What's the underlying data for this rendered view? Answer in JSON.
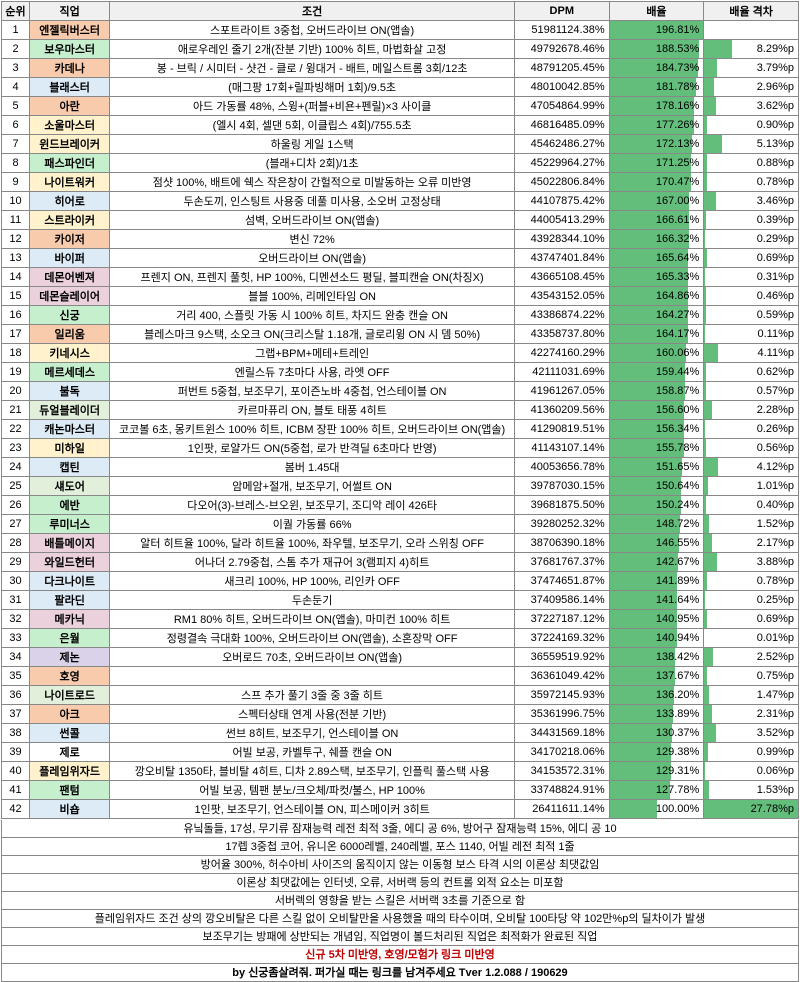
{
  "headers": {
    "rank": "순위",
    "job": "직업",
    "cond": "조건",
    "dpm": "DPM",
    "pct": "배율",
    "gap": "배율 격차"
  },
  "pctBar": {
    "color": "#63be7b",
    "max": 196.81
  },
  "gapBar": {
    "color": "#63be7b",
    "max": 27.78
  },
  "rows": [
    {
      "rank": 1,
      "job": "엔젤릭버스터",
      "jobColor": "#f8cbad",
      "cond": "스포트라이트 3중첩, 오버드라이브 ON(앱솔)",
      "dpm": "51981124.38%",
      "pct": "196.81%",
      "gap": ""
    },
    {
      "rank": 2,
      "job": "보우마스터",
      "jobColor": "#c6efce",
      "cond": "애로우레인 줄기 2개(잔분 기반) 100% 히트, 마법화살 고정",
      "dpm": "49792678.46%",
      "pct": "188.53%",
      "gap": "8.29%p"
    },
    {
      "rank": 3,
      "job": "카데나",
      "jobColor": "#f8cbad",
      "cond": "봉 - 브릭 / 시미터 - 샷건 - 클로 / 윙대거 - 배트, 메일스트롬 3회/12초",
      "dpm": "48791205.45%",
      "pct": "184.73%",
      "gap": "3.79%p"
    },
    {
      "rank": 4,
      "job": "블래스터",
      "jobColor": "#ddebf7",
      "cond": "(매그팡 17회+릴파빙해머 1회)/9.5초",
      "dpm": "48010042.85%",
      "pct": "181.78%",
      "gap": "2.96%p"
    },
    {
      "rank": 5,
      "job": "아란",
      "jobColor": "#f8cbad",
      "cond": "아드 가동률 48%, 스윙+(퍼블+비욘+펜릴)×3 사이클",
      "dpm": "47054864.99%",
      "pct": "178.16%",
      "gap": "3.62%p"
    },
    {
      "rank": 6,
      "job": "소울마스터",
      "jobColor": "#fff2cc",
      "cond": "(엘시 4회, 셀댄 5회, 이클립스 4회)/755.5초",
      "dpm": "46816485.09%",
      "pct": "177.26%",
      "gap": "0.90%p"
    },
    {
      "rank": 7,
      "job": "윈드브레이커",
      "jobColor": "#fff2cc",
      "cond": "하울링 게일 1스택",
      "dpm": "45462486.27%",
      "pct": "172.13%",
      "gap": "5.13%p"
    },
    {
      "rank": 8,
      "job": "패스파인더",
      "jobColor": "#c6efce",
      "cond": "(블래+디차 2회)/1초",
      "dpm": "45229964.27%",
      "pct": "171.25%",
      "gap": "0.88%p"
    },
    {
      "rank": 9,
      "job": "나이트워커",
      "jobColor": "#fff2cc",
      "cond": "점샷 100%, 배트에 쉑스 작은창이 간헐적으로 미발동하는 오류 미반영",
      "dpm": "45022806.84%",
      "pct": "170.47%",
      "gap": "0.78%p"
    },
    {
      "rank": 10,
      "job": "히어로",
      "jobColor": "#ddebf7",
      "cond": "두손도끼, 인스팅트 사용중 데풀 미사용, 소오버 고정상태",
      "dpm": "44107875.42%",
      "pct": "167.00%",
      "gap": "3.46%p"
    },
    {
      "rank": 11,
      "job": "스트라이커",
      "jobColor": "#fff2cc",
      "cond": "섬벽, 오버드라이브 ON(앱솔)",
      "dpm": "44005413.29%",
      "pct": "166.61%",
      "gap": "0.39%p"
    },
    {
      "rank": 12,
      "job": "카이저",
      "jobColor": "#f8cbad",
      "cond": "변신 72%",
      "dpm": "43928344.10%",
      "pct": "166.32%",
      "gap": "0.29%p"
    },
    {
      "rank": 13,
      "job": "바이퍼",
      "jobColor": "#ddebf7",
      "cond": "오버드라이브 ON(앱솔)",
      "dpm": "43747401.84%",
      "pct": "165.64%",
      "gap": "0.69%p"
    },
    {
      "rank": 14,
      "job": "데몬어벤져",
      "jobColor": "#ead1dc",
      "cond": "프렌지 ON, 프렌지 풀힛, HP 100%, 디멘션소드 평딜, 블피캔슬 ON(차징X)",
      "dpm": "43665108.45%",
      "pct": "165.33%",
      "gap": "0.31%p"
    },
    {
      "rank": 15,
      "job": "데몬슬레이어",
      "jobColor": "#ead1dc",
      "cond": "블블 100%, 리메인타임 ON",
      "dpm": "43543152.05%",
      "pct": "164.86%",
      "gap": "0.46%p"
    },
    {
      "rank": 16,
      "job": "신궁",
      "jobColor": "#c6efce",
      "cond": "거리 400, 스플릿 가동 시 100% 히트, 차지드 완충 캔슬 ON",
      "dpm": "43386874.22%",
      "pct": "164.27%",
      "gap": "0.59%p"
    },
    {
      "rank": 17,
      "job": "일리움",
      "jobColor": "#f8cbad",
      "cond": "블레스마크 9스택, 소오크 ON(크리스탈 1.18개, 글로리윙 ON 시 뎀 50%)",
      "dpm": "43358737.80%",
      "pct": "164.17%",
      "gap": "0.11%p"
    },
    {
      "rank": 18,
      "job": "키네시스",
      "jobColor": "#fff2cc",
      "cond": "그랩+BPM+메테+트레인",
      "dpm": "42274160.29%",
      "pct": "160.06%",
      "gap": "4.11%p"
    },
    {
      "rank": 19,
      "job": "메르세데스",
      "jobColor": "#c6efce",
      "cond": "엔릴스듀 7초마다 사용, 라엣 OFF",
      "dpm": "42111031.69%",
      "pct": "159.44%",
      "gap": "0.62%p"
    },
    {
      "rank": 20,
      "job": "불독",
      "jobColor": "#ddebf7",
      "cond": "퍼번트 5중첩, 보조무기, 포이즌노바 4중첩, 언스테이블 ON",
      "dpm": "41961267.05%",
      "pct": "158.87%",
      "gap": "0.57%p"
    },
    {
      "rank": 21,
      "job": "듀얼블레이더",
      "jobColor": "#e2efda",
      "cond": "카르마퓨리 ON, 블토 태풍 4히트",
      "dpm": "41360209.56%",
      "pct": "156.60%",
      "gap": "2.28%p"
    },
    {
      "rank": 22,
      "job": "캐논마스터",
      "jobColor": "#ddebf7",
      "cond": "코코볼 6초, 몽키트윈스 100% 히트, ICBM 장판 100% 히트, 오버드라이브 ON(앱솔)",
      "dpm": "41290819.51%",
      "pct": "156.34%",
      "gap": "0.26%p"
    },
    {
      "rank": 23,
      "job": "미하일",
      "jobColor": "#fff2cc",
      "cond": "1인팟, 로얄가드 ON(5중첩, 로가 반격딜 6초마다 반영)",
      "dpm": "41143107.14%",
      "pct": "155.78%",
      "gap": "0.56%p"
    },
    {
      "rank": 24,
      "job": "캡틴",
      "jobColor": "#ddebf7",
      "cond": "봄버 1.45대",
      "dpm": "40053656.78%",
      "pct": "151.65%",
      "gap": "4.12%p"
    },
    {
      "rank": 25,
      "job": "섀도어",
      "jobColor": "#e2efda",
      "cond": "암메암+절개, 보조무기, 어썰트 ON",
      "dpm": "39787030.15%",
      "pct": "150.64%",
      "gap": "1.01%p"
    },
    {
      "rank": 26,
      "job": "에반",
      "jobColor": "#c6efce",
      "cond": "다오어(3)-브레스-브오윈, 보조무기, 조디악 레이 426타",
      "dpm": "39681875.50%",
      "pct": "150.24%",
      "gap": "0.40%p"
    },
    {
      "rank": 27,
      "job": "루미너스",
      "jobColor": "#c6efce",
      "cond": "이퀄 가동률 66%",
      "dpm": "39280252.32%",
      "pct": "148.72%",
      "gap": "1.52%p"
    },
    {
      "rank": 28,
      "job": "배틀메이지",
      "jobColor": "#ead1dc",
      "cond": "알터 히트율 100%, 달라 히트율 100%, 좌우텔, 보조무기, 오라 스위칭 OFF",
      "dpm": "38706390.18%",
      "pct": "146.55%",
      "gap": "2.17%p"
    },
    {
      "rank": 29,
      "job": "와일드헌터",
      "jobColor": "#ead1dc",
      "cond": "어나더 2.79중첩, 스톰 추가 재규어 3(램피지 4)히트",
      "dpm": "37681767.37%",
      "pct": "142.67%",
      "gap": "3.88%p"
    },
    {
      "rank": 30,
      "job": "다크나이트",
      "jobColor": "#ddebf7",
      "cond": "새크리 100%, HP 100%, 리인카 OFF",
      "dpm": "37474651.87%",
      "pct": "141.89%",
      "gap": "0.78%p"
    },
    {
      "rank": 31,
      "job": "팔라딘",
      "jobColor": "#ddebf7",
      "cond": "두손둔기",
      "dpm": "37409586.14%",
      "pct": "141.64%",
      "gap": "0.25%p"
    },
    {
      "rank": 32,
      "job": "메카닉",
      "jobColor": "#ead1dc",
      "cond": "RM1 80% 히트, 오버드라이브 ON(앱솔), 마미컨 100% 히트",
      "dpm": "37227187.12%",
      "pct": "140.95%",
      "gap": "0.69%p"
    },
    {
      "rank": 33,
      "job": "은월",
      "jobColor": "#c6efce",
      "cond": "정령결속 극대화 100%, 오버드라이브 ON(앱솔), 소혼장막 OFF",
      "dpm": "37224169.32%",
      "pct": "140.94%",
      "gap": "0.01%p"
    },
    {
      "rank": 34,
      "job": "제논",
      "jobColor": "#d9d2e9",
      "cond": "오버로드 70초, 오버드라이브 ON(앱솔)",
      "dpm": "36559519.92%",
      "pct": "138.42%",
      "gap": "2.52%p"
    },
    {
      "rank": 35,
      "job": "호영",
      "jobColor": "#f8cbad",
      "cond": "",
      "dpm": "36361049.42%",
      "pct": "137.67%",
      "gap": "0.75%p"
    },
    {
      "rank": 36,
      "job": "나이트로드",
      "jobColor": "#e2efda",
      "cond": "스프 추가 풀기 3줄 중 3줄 히트",
      "dpm": "35972145.93%",
      "pct": "136.20%",
      "gap": "1.47%p"
    },
    {
      "rank": 37,
      "job": "아크",
      "jobColor": "#f8cbad",
      "cond": "스펙터상태 연계 사용(전분 기반)",
      "dpm": "35361996.75%",
      "pct": "133.89%",
      "gap": "2.31%p"
    },
    {
      "rank": 38,
      "job": "썬콜",
      "jobColor": "#ddebf7",
      "cond": "썬브 8히트, 보조무기, 언스테이블 ON",
      "dpm": "34431569.18%",
      "pct": "130.37%",
      "gap": "3.52%p"
    },
    {
      "rank": 39,
      "job": "제로",
      "jobColor": "#ffffff",
      "cond": "어빌 보공, 카벨투구, 쉐플 캔슬 ON",
      "dpm": "34170218.06%",
      "pct": "129.38%",
      "gap": "0.99%p"
    },
    {
      "rank": 40,
      "job": "플레임위자드",
      "jobColor": "#fff2cc",
      "cond": "깡오비탈 1350타, 블비탈 4히트, 디차 2.89스택, 보조무기, 인플릭 풀스택 사용",
      "dpm": "34153572.31%",
      "pct": "129.31%",
      "gap": "0.06%p"
    },
    {
      "rank": 41,
      "job": "팬텀",
      "jobColor": "#c6efce",
      "cond": "어빌 보공, 템팬 분노/크오체/파컷/불스, HP 100%",
      "dpm": "33748824.91%",
      "pct": "127.78%",
      "gap": "1.53%p"
    },
    {
      "rank": 42,
      "job": "비숍",
      "jobColor": "#ddebf7",
      "cond": "1인팟, 보조무기, 언스테이블 ON, 피스메이커 3히트",
      "dpm": "26411611.14%",
      "pct": "100.00%",
      "gap": "27.78%p"
    }
  ],
  "notes": [
    {
      "text": "유닠돌들, 17성, 무기류 잠재능력 레전 최적 3줄, 에디 공 6%, 방어구 잠재능력 15%, 에디 공 10",
      "cls": ""
    },
    {
      "text": "17렙 3중첩 코어, 유니온 6000레벨, 240레벨, 포스 1140, 어빌 레전 최적 1줄",
      "cls": ""
    },
    {
      "text": "방어율 300%, 허수아비 사이즈의 움직이지 않는 이동형 보스 타격 시의 이론상 최댓값임",
      "cls": ""
    },
    {
      "text": "이론상 최댓값에는 인터넷, 오류, 서버랙 등의 컨트롤 외적 요소는 미포함",
      "cls": ""
    },
    {
      "text": "서버렉의 영향을 받는 스킬은 서버랙 3초를 기준으로 함",
      "cls": ""
    },
    {
      "text": "플레임위자드 조건 상의 깡오비탈은 다른 스킬 없이 오비탈만을 사용했을 때의 타수이며, 오비탈 100타당 약 102만%p의 딜차이가 발생",
      "cls": ""
    },
    {
      "text": "보조무기는 방패에 상반되는 개념임, 직업명이 볼드처리된 직업은 최적화가 완료된 직업",
      "cls": ""
    },
    {
      "text": "신규 5차 미반영, 호영/모험가 링크 미반영",
      "cls": "note-red"
    },
    {
      "text": "by 신궁좀살려줘. 퍼가실 때는 링크를 남겨주세요 Tver 1.2.088 / 190629",
      "cls": "note-bold"
    }
  ]
}
